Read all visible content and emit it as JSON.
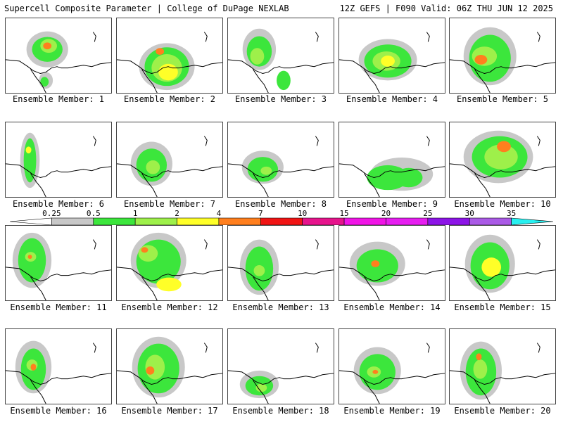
{
  "header": {
    "title_left": "Supercell Composite Parameter | College of DuPage NEXLAB",
    "title_right": "12Z GEFS | F090 Valid: 06Z THU JUN 12 2025"
  },
  "colorbar": {
    "labels": [
      "0.25",
      "0.5",
      "1",
      "2",
      "4",
      "7",
      "10",
      "15",
      "20",
      "25",
      "30",
      "35"
    ],
    "colors": [
      "#ffffff",
      "#c8c8c8",
      "#3ce63c",
      "#9ef04a",
      "#ffff28",
      "#ff7f1e",
      "#f01414",
      "#e6148c",
      "#f014e6",
      "#e61ef0",
      "#8c14e6",
      "#aa5ae6",
      "#28f0f0"
    ]
  },
  "panels": [
    {
      "label": "Ensemble Member: 1"
    },
    {
      "label": "Ensemble Member: 2"
    },
    {
      "label": "Ensemble Member: 3"
    },
    {
      "label": "Ensemble Member: 4"
    },
    {
      "label": "Ensemble Member: 5"
    },
    {
      "label": "Ensemble Member: 6"
    },
    {
      "label": "Ensemble Member: 7"
    },
    {
      "label": "Ensemble Member: 8"
    },
    {
      "label": "Ensemble Member: 9"
    },
    {
      "label": "Ensemble Member: 10"
    },
    {
      "label": "Ensemble Member: 11"
    },
    {
      "label": "Ensemble Member: 12"
    },
    {
      "label": "Ensemble Member: 13"
    },
    {
      "label": "Ensemble Member: 14"
    },
    {
      "label": "Ensemble Member: 15"
    },
    {
      "label": "Ensemble Member: 16"
    },
    {
      "label": "Ensemble Member: 17"
    },
    {
      "label": "Ensemble Member: 18"
    },
    {
      "label": "Ensemble Member: 19"
    },
    {
      "label": "Ensemble Member: 20"
    }
  ]
}
